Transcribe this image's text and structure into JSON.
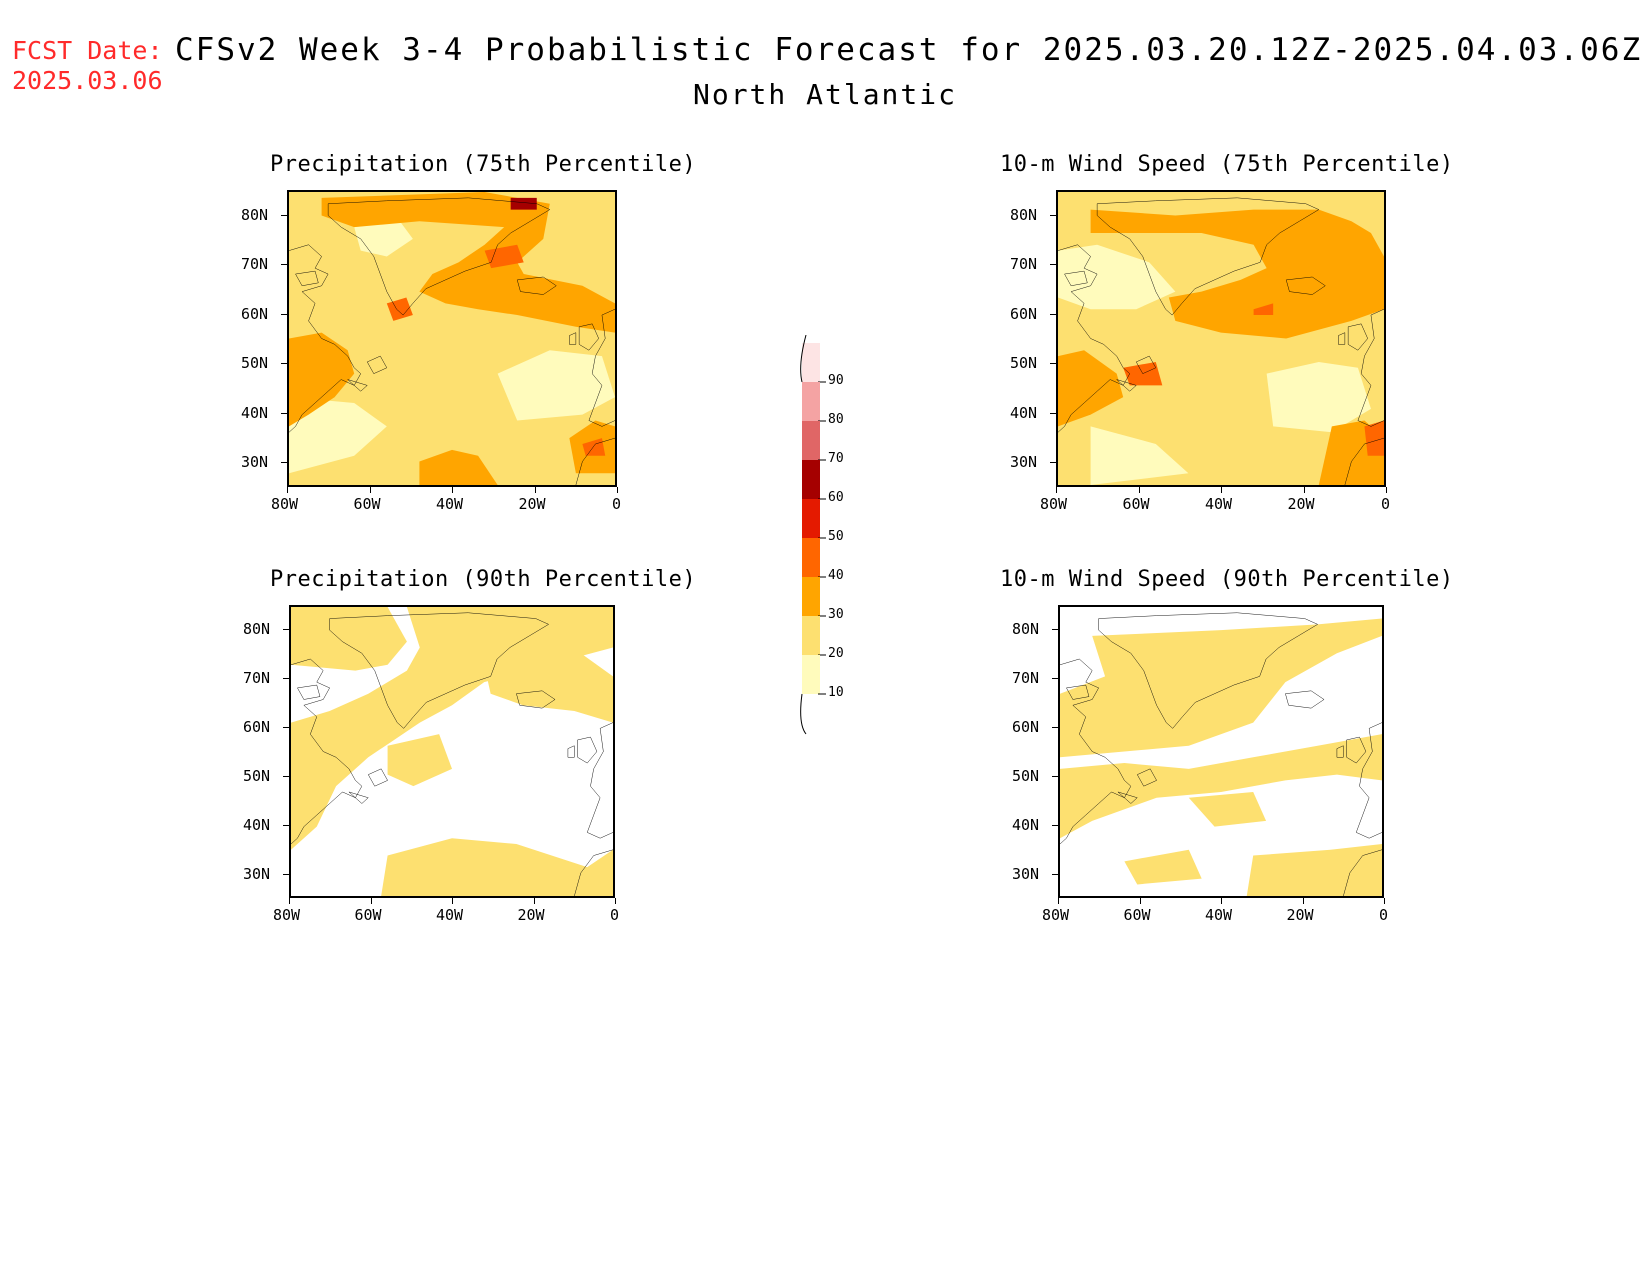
{
  "header": {
    "fcst_label": "FCST Date:",
    "fcst_date": "2025.03.06",
    "title": "CFSv2 Week 3-4 Probabilistic Forecast for 2025.03.20.12Z-2025.04.03.06Z",
    "region": "North Atlantic"
  },
  "axes": {
    "lat_ticks": [
      "80N",
      "70N",
      "60N",
      "50N",
      "40N",
      "30N"
    ],
    "lon_ticks": [
      "80W",
      "60W",
      "40W",
      "20W",
      "0"
    ]
  },
  "panels": [
    {
      "title": "Precipitation (75th Percentile)",
      "intensity": "high"
    },
    {
      "title": "10-m Wind Speed (75th Percentile)",
      "intensity": "high"
    },
    {
      "title": "Precipitation (90th Percentile)",
      "intensity": "low"
    },
    {
      "title": "10-m Wind Speed (90th Percentile)",
      "intensity": "low"
    }
  ],
  "colorbar": {
    "labels": [
      "90",
      "80",
      "70",
      "60",
      "50",
      "40",
      "30",
      "20",
      "10"
    ],
    "colors": [
      "#fde4e4",
      "#f4a3a3",
      "#e06666",
      "#a50000",
      "#e41a00",
      "#ff6600",
      "#ffa500",
      "#fde070",
      "#fffbbc"
    ]
  },
  "fill_colors": {
    "light": "#fffbbc",
    "yellow": "#fde070",
    "orange": "#ffa500",
    "dark_orange": "#ff6600",
    "red": "#e41a00",
    "dark_red": "#a50000"
  }
}
